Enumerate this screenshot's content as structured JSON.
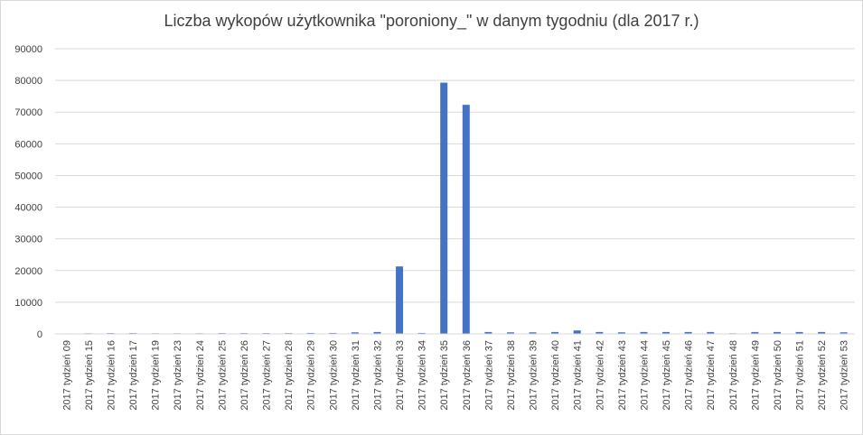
{
  "chart_data": {
    "type": "bar",
    "title": "Liczba wykopów użytkownika \"poroniony_\" w danym tygodniu (dla 2017 r.)",
    "xlabel": "",
    "ylabel": "",
    "ylim": [
      0,
      90000
    ],
    "yticks": [
      "0",
      "10000",
      "20000",
      "30000",
      "40000",
      "50000",
      "60000",
      "70000",
      "80000",
      "90000"
    ],
    "grid": true,
    "legend": "none",
    "bar_color": "#4472c4",
    "categories": [
      "2017 tydzień 09",
      "2017 tydzień 15",
      "2017 tydzień 16",
      "2017 tydzień 17",
      "2017 tydzień 19",
      "2017 tydzień 23",
      "2017 tydzień 24",
      "2017 tydzień 25",
      "2017 tydzień 26",
      "2017 tydzień 27",
      "2017 tydzień 28",
      "2017 tydzień 29",
      "2017 tydzień 30",
      "2017 tydzień 31",
      "2017 tydzień 32",
      "2017 tydzień 33",
      "2017 tydzień 34",
      "2017 tydzień 35",
      "2017 tydzień 36",
      "2017 tydzień 37",
      "2017 tydzień 38",
      "2017 tydzień 39",
      "2017 tydzień 40",
      "2017 tydzień 41",
      "2017 tydzień 42",
      "2017 tydzień 43",
      "2017 tydzień 44",
      "2017 tydzień 45",
      "2017 tydzień 46",
      "2017 tydzień 47",
      "2017 tydzień 48",
      "2017 tydzień 49",
      "2017 tydzień 50",
      "2017 tydzień 51",
      "2017 tydzień 52",
      "2017 tydzień 53"
    ],
    "values": [
      150,
      200,
      250,
      250,
      200,
      200,
      200,
      250,
      250,
      250,
      250,
      300,
      300,
      500,
      600,
      21300,
      300,
      79300,
      72300,
      600,
      500,
      500,
      600,
      1100,
      600,
      500,
      600,
      600,
      600,
      600,
      200,
      600,
      600,
      600,
      600,
      500
    ]
  }
}
